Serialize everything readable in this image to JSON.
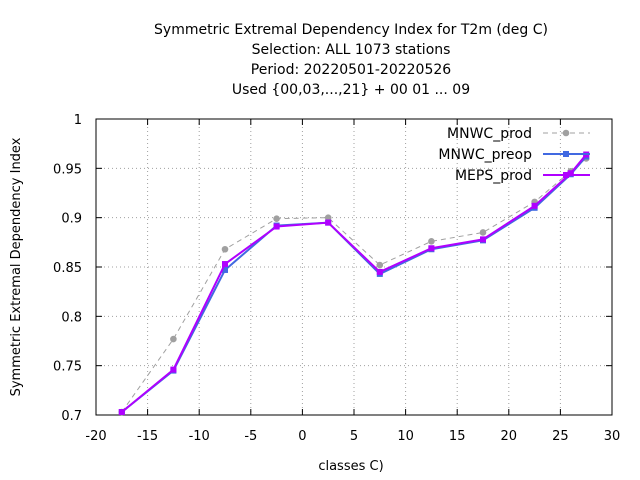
{
  "chart_data": {
    "type": "line",
    "title_lines": [
      "Symmetric Extremal Dependency Index  for T2m (deg C)",
      "Selection: ALL    1073 stations",
      "Period: 20220501-20220526",
      "Used {00,03,...,21} + 00 01 ... 09"
    ],
    "xlabel": "classes C)",
    "ylabel": "Symmetric Extremal Dependency Index",
    "xlim": [
      -20,
      30
    ],
    "ylim": [
      0.7,
      1.0
    ],
    "xticks": [
      -20,
      -15,
      -10,
      -5,
      0,
      5,
      10,
      15,
      20,
      25,
      30
    ],
    "yticks": [
      0.7,
      0.75,
      0.8,
      0.85,
      0.9,
      0.95,
      1.0
    ],
    "xtick_labels": [
      "-20",
      "-15",
      "-10",
      "-5",
      "0",
      "5",
      "10",
      "15",
      "20",
      "25",
      "30"
    ],
    "ytick_labels": [
      "0.7",
      "0.75",
      "0.8",
      "0.85",
      "0.9",
      "0.95",
      "1"
    ],
    "grid": true,
    "legend_position": "top-right",
    "series": [
      {
        "name": "MNWC_prod",
        "color": "#a0a0a0",
        "style": "dashed",
        "marker": "circle",
        "x": [
          -17.5,
          -12.5,
          -7.5,
          -2.5,
          2.5,
          7.5,
          12.5,
          17.5,
          22.5,
          26,
          27.5
        ],
        "y": [
          0.703,
          0.777,
          0.868,
          0.899,
          0.9,
          0.852,
          0.876,
          0.885,
          0.916,
          0.947,
          0.96
        ]
      },
      {
        "name": "MNWC_preop",
        "color": "#4169e1",
        "style": "solid",
        "marker": "square",
        "x": [
          -17.5,
          -12.5,
          -7.5,
          -2.5,
          2.5,
          7.5,
          12.5,
          17.5,
          22.5,
          26,
          27.5
        ],
        "y": [
          0.703,
          0.745,
          0.847,
          0.892,
          0.895,
          0.843,
          0.868,
          0.877,
          0.91,
          0.944,
          0.962
        ]
      },
      {
        "name": "MEPS_prod",
        "color": "#b000ff",
        "style": "solid",
        "marker": "square",
        "x": [
          -17.5,
          -12.5,
          -7.5,
          -2.5,
          2.5,
          7.5,
          12.5,
          17.5,
          22.5,
          26,
          27.5
        ],
        "y": [
          0.703,
          0.746,
          0.853,
          0.891,
          0.895,
          0.845,
          0.869,
          0.878,
          0.912,
          0.945,
          0.964
        ]
      }
    ]
  }
}
